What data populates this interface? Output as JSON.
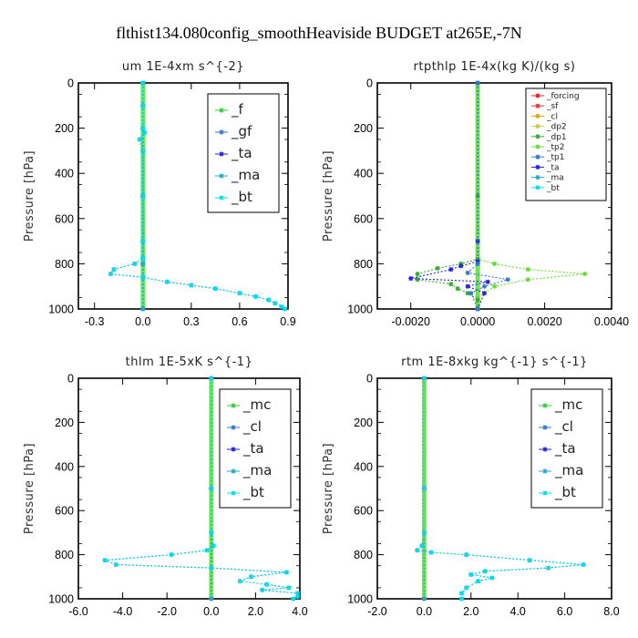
{
  "figure": {
    "title": "flthist134.080config_smoothHeaviside  BUDGET at265E,-7N"
  },
  "colors": {
    "f": "#33cc33",
    "gf": "#3377cc",
    "ta": "#2222dd",
    "ma": "#22aacc",
    "bt": "#00ddee",
    "mc": "#33cc33",
    "cl": "#3377cc",
    "forcing": "#dd2222",
    "sf": "#ee3333",
    "cl_rt": "#ddaa00",
    "dp2": "#cccc44",
    "dp1": "#33aa33",
    "tp2": "#66dd33",
    "tp1": "#3377cc",
    "ta_rt": "#2222dd",
    "ma_rt": "#22aacc",
    "bt_rt": "#00ddee"
  },
  "chart_data": [
    {
      "type": "line",
      "title": "um   1E-4xm  s^{-2}",
      "xlabel": "",
      "ylabel": "Pressure [hPa]",
      "xlim": [
        -0.4,
        0.9
      ],
      "ylim": [
        1000,
        0
      ],
      "xticks": [
        -0.3,
        0.0,
        0.3,
        0.6,
        0.9
      ],
      "xtick_labels": [
        "-0.3",
        "0.0",
        "0.3",
        "0.6",
        "0.9"
      ],
      "yticks": [
        0,
        200,
        400,
        600,
        800,
        1000
      ],
      "ytick_labels": [
        "0",
        "200",
        "400",
        "600",
        "800",
        "1000"
      ],
      "legend_position": "top-right",
      "legend_small": false,
      "legend": [
        {
          "key": "f",
          "label": "_f"
        },
        {
          "key": "gf",
          "label": "_gf"
        },
        {
          "key": "ta",
          "label": "_ta"
        },
        {
          "key": "ma",
          "label": "_ma"
        },
        {
          "key": "bt",
          "label": "_bt"
        }
      ],
      "series": [
        {
          "key": "f",
          "values": []
        },
        {
          "key": "gf",
          "values": [
            [
              0,
              0
            ],
            [
              0,
              100
            ],
            [
              0,
              200
            ],
            [
              0.01,
              220
            ],
            [
              -0.02,
              250
            ],
            [
              0,
              300
            ],
            [
              0,
              500
            ],
            [
              0,
              700
            ],
            [
              0,
              775
            ],
            [
              -0.05,
              800
            ],
            [
              -0.18,
              825
            ],
            [
              -0.2,
              845
            ],
            [
              0,
              860
            ],
            [
              0.15,
              880
            ],
            [
              0.3,
              895
            ],
            [
              0.45,
              910
            ],
            [
              0.6,
              930
            ],
            [
              0.7,
              945
            ],
            [
              0.78,
              960
            ],
            [
              0.82,
              975
            ],
            [
              0.86,
              990
            ],
            [
              0.88,
              1000
            ]
          ]
        },
        {
          "key": "ta",
          "values": [
            [
              0,
              0
            ],
            [
              0,
              500
            ],
            [
              0,
              800
            ],
            [
              0,
              1000
            ]
          ]
        },
        {
          "key": "ma",
          "values": [
            [
              0,
              0
            ],
            [
              0,
              500
            ],
            [
              0,
              800
            ],
            [
              0,
              1000
            ]
          ]
        },
        {
          "key": "bt",
          "values": [
            [
              0,
              0
            ],
            [
              0,
              100
            ],
            [
              0,
              200
            ],
            [
              0.01,
              220
            ],
            [
              -0.02,
              250
            ],
            [
              0,
              300
            ],
            [
              0,
              500
            ],
            [
              0,
              700
            ],
            [
              0,
              775
            ],
            [
              -0.05,
              800
            ],
            [
              -0.18,
              825
            ],
            [
              -0.2,
              845
            ],
            [
              0,
              860
            ],
            [
              0.15,
              880
            ],
            [
              0.3,
              895
            ],
            [
              0.45,
              910
            ],
            [
              0.6,
              930
            ],
            [
              0.7,
              945
            ],
            [
              0.78,
              960
            ],
            [
              0.82,
              975
            ],
            [
              0.86,
              990
            ],
            [
              0.88,
              1000
            ]
          ]
        }
      ]
    },
    {
      "type": "line",
      "title": "rtpthlp   1E-4x(kg K)/(kg s)",
      "xlabel": "",
      "ylabel": "Pressure [hPa]",
      "xlim": [
        -0.003,
        0.004
      ],
      "ylim": [
        1000,
        0
      ],
      "xticks": [
        -0.002,
        0.0,
        0.002,
        0.004
      ],
      "xtick_labels": [
        "-0.0020",
        "0.0000",
        "0.0020",
        "0.0040"
      ],
      "yticks": [
        0,
        200,
        400,
        600,
        800,
        1000
      ],
      "ytick_labels": [
        "0",
        "200",
        "400",
        "600",
        "800",
        "1000"
      ],
      "legend_position": "top-right",
      "legend_small": true,
      "legend": [
        {
          "key": "forcing",
          "label": "_forcing"
        },
        {
          "key": "sf",
          "label": "_sf"
        },
        {
          "key": "cl_rt",
          "label": "_cl"
        },
        {
          "key": "dp2",
          "label": "_dp2"
        },
        {
          "key": "dp1",
          "label": "_dp1"
        },
        {
          "key": "tp2",
          "label": "_tp2"
        },
        {
          "key": "tp1",
          "label": "_tp1"
        },
        {
          "key": "ta_rt",
          "label": "_ta"
        },
        {
          "key": "ma_rt",
          "label": "_ma"
        },
        {
          "key": "bt_rt",
          "label": "_bt"
        }
      ],
      "series": [
        {
          "key": "forcing",
          "values": []
        },
        {
          "key": "tp2",
          "values": [
            [
              0,
              0
            ],
            [
              0,
              500
            ],
            [
              0,
              780
            ],
            [
              0.0005,
              800
            ],
            [
              0.0015,
              825
            ],
            [
              0.0032,
              845
            ],
            [
              0.0015,
              870
            ],
            [
              0.0005,
              900
            ],
            [
              0,
              950
            ],
            [
              0,
              1000
            ]
          ]
        },
        {
          "key": "dp1",
          "values": [
            [
              0,
              0
            ],
            [
              0,
              500
            ],
            [
              0,
              780
            ],
            [
              -0.0005,
              800
            ],
            [
              -0.0012,
              820
            ],
            [
              -0.0018,
              845
            ],
            [
              -0.0018,
              870
            ],
            [
              -0.0008,
              890
            ],
            [
              -0.0006,
              910
            ],
            [
              -0.0003,
              930
            ],
            [
              0,
              960
            ],
            [
              0,
              1000
            ]
          ]
        },
        {
          "key": "ta_rt",
          "values": [
            [
              0,
              0
            ],
            [
              0,
              700
            ],
            [
              0,
              790
            ],
            [
              -0.0005,
              810
            ],
            [
              -0.0008,
              825
            ],
            [
              -0.002,
              865
            ],
            [
              0.0003,
              880
            ],
            [
              -0.0003,
              900
            ],
            [
              0.0002,
              930
            ],
            [
              0,
              1000
            ]
          ]
        },
        {
          "key": "tp1",
          "values": [
            [
              0,
              0
            ],
            [
              0,
              800
            ],
            [
              -0.0003,
              840
            ],
            [
              0.0009,
              870
            ],
            [
              0.0002,
              900
            ],
            [
              -0.0002,
              930
            ],
            [
              0,
              1000
            ]
          ]
        }
      ]
    },
    {
      "type": "line",
      "title": "thlm   1E-5xK  s^{-1}",
      "xlabel": "",
      "ylabel": "Pressure [hPa]",
      "xlim": [
        -6,
        4
      ],
      "ylim": [
        1000,
        0
      ],
      "xticks": [
        -6,
        -4,
        -2,
        0,
        2,
        4
      ],
      "xtick_labels": [
        "-6.0",
        "-4.0",
        "-2.0",
        "0.0",
        "2.0",
        "4.0"
      ],
      "yticks": [
        0,
        200,
        400,
        600,
        800,
        1000
      ],
      "ytick_labels": [
        "0",
        "200",
        "400",
        "600",
        "800",
        "1000"
      ],
      "legend_position": "top-right",
      "legend_small": false,
      "legend": [
        {
          "key": "mc",
          "label": "_mc"
        },
        {
          "key": "cl",
          "label": "_cl"
        },
        {
          "key": "ta",
          "label": "_ta"
        },
        {
          "key": "ma",
          "label": "_ma"
        },
        {
          "key": "bt",
          "label": "_bt"
        }
      ],
      "series": [
        {
          "key": "mc",
          "values": []
        },
        {
          "key": "cl",
          "values": [
            [
              0,
              0
            ],
            [
              0,
              500
            ],
            [
              0,
              700
            ],
            [
              0.1,
              760
            ],
            [
              -0.2,
              780
            ],
            [
              -1.8,
              800
            ],
            [
              -4.8,
              825
            ],
            [
              -4.3,
              845
            ],
            [
              0,
              860
            ],
            [
              3.4,
              880
            ],
            [
              1.8,
              900
            ],
            [
              1.3,
              920
            ],
            [
              2.5,
              935
            ],
            [
              3.5,
              950
            ],
            [
              2.3,
              960
            ],
            [
              3.9,
              975
            ],
            [
              3.9,
              990
            ],
            [
              3.7,
              1000
            ]
          ]
        },
        {
          "key": "ta",
          "values": [
            [
              0,
              0
            ],
            [
              0,
              500
            ],
            [
              0,
              1000
            ]
          ]
        },
        {
          "key": "ma",
          "values": [
            [
              0,
              0
            ],
            [
              0,
              500
            ],
            [
              0,
              1000
            ]
          ]
        },
        {
          "key": "bt",
          "values": [
            [
              0,
              0
            ],
            [
              0,
              500
            ],
            [
              0,
              700
            ],
            [
              0.1,
              760
            ],
            [
              -0.2,
              780
            ],
            [
              -1.8,
              800
            ],
            [
              -4.8,
              825
            ],
            [
              -4.3,
              845
            ],
            [
              0,
              860
            ],
            [
              3.4,
              880
            ],
            [
              1.8,
              900
            ],
            [
              1.3,
              920
            ],
            [
              2.5,
              935
            ],
            [
              3.5,
              950
            ],
            [
              2.3,
              960
            ],
            [
              3.9,
              975
            ],
            [
              3.9,
              990
            ],
            [
              3.7,
              1000
            ]
          ]
        }
      ]
    },
    {
      "type": "line",
      "title": "rtm   1E-8xkg  kg^{-1}  s^{-1}",
      "xlabel": "",
      "ylabel": "Pressure [hPa]",
      "xlim": [
        -2,
        8
      ],
      "ylim": [
        1000,
        0
      ],
      "xticks": [
        -2,
        0,
        2,
        4,
        6,
        8
      ],
      "xtick_labels": [
        "-2.0",
        "0.0",
        "2.0",
        "4.0",
        "6.0",
        "8.0"
      ],
      "yticks": [
        0,
        200,
        400,
        600,
        800,
        1000
      ],
      "ytick_labels": [
        "0",
        "200",
        "400",
        "600",
        "800",
        "1000"
      ],
      "legend_position": "top-right",
      "legend_small": false,
      "legend": [
        {
          "key": "mc",
          "label": "_mc"
        },
        {
          "key": "cl",
          "label": "_cl"
        },
        {
          "key": "ta",
          "label": "_ta"
        },
        {
          "key": "ma",
          "label": "_ma"
        },
        {
          "key": "bt",
          "label": "_bt"
        }
      ],
      "series": [
        {
          "key": "mc",
          "values": []
        },
        {
          "key": "cl",
          "values": [
            [
              0,
              0
            ],
            [
              0,
              500
            ],
            [
              0,
              700
            ],
            [
              -0.1,
              760
            ],
            [
              -0.3,
              780
            ],
            [
              0.3,
              790
            ],
            [
              1.8,
              800
            ],
            [
              4.5,
              825
            ],
            [
              6.8,
              845
            ],
            [
              5.3,
              860
            ],
            [
              2.6,
              875
            ],
            [
              2.0,
              890
            ],
            [
              2.9,
              905
            ],
            [
              2.3,
              920
            ],
            [
              1.8,
              950
            ],
            [
              1.6,
              975
            ],
            [
              1.6,
              1000
            ]
          ]
        },
        {
          "key": "ta",
          "values": [
            [
              0,
              0
            ],
            [
              0,
              500
            ],
            [
              0,
              1000
            ]
          ]
        },
        {
          "key": "ma",
          "values": [
            [
              0,
              0
            ],
            [
              0,
              500
            ],
            [
              0,
              1000
            ]
          ]
        },
        {
          "key": "bt",
          "values": [
            [
              0,
              0
            ],
            [
              0,
              500
            ],
            [
              0,
              700
            ],
            [
              -0.1,
              760
            ],
            [
              -0.3,
              780
            ],
            [
              0.3,
              790
            ],
            [
              1.8,
              800
            ],
            [
              4.5,
              825
            ],
            [
              6.8,
              845
            ],
            [
              5.3,
              860
            ],
            [
              2.6,
              875
            ],
            [
              2.0,
              890
            ],
            [
              2.9,
              905
            ],
            [
              2.3,
              920
            ],
            [
              1.8,
              950
            ],
            [
              1.6,
              975
            ],
            [
              1.6,
              1000
            ]
          ]
        }
      ]
    }
  ]
}
